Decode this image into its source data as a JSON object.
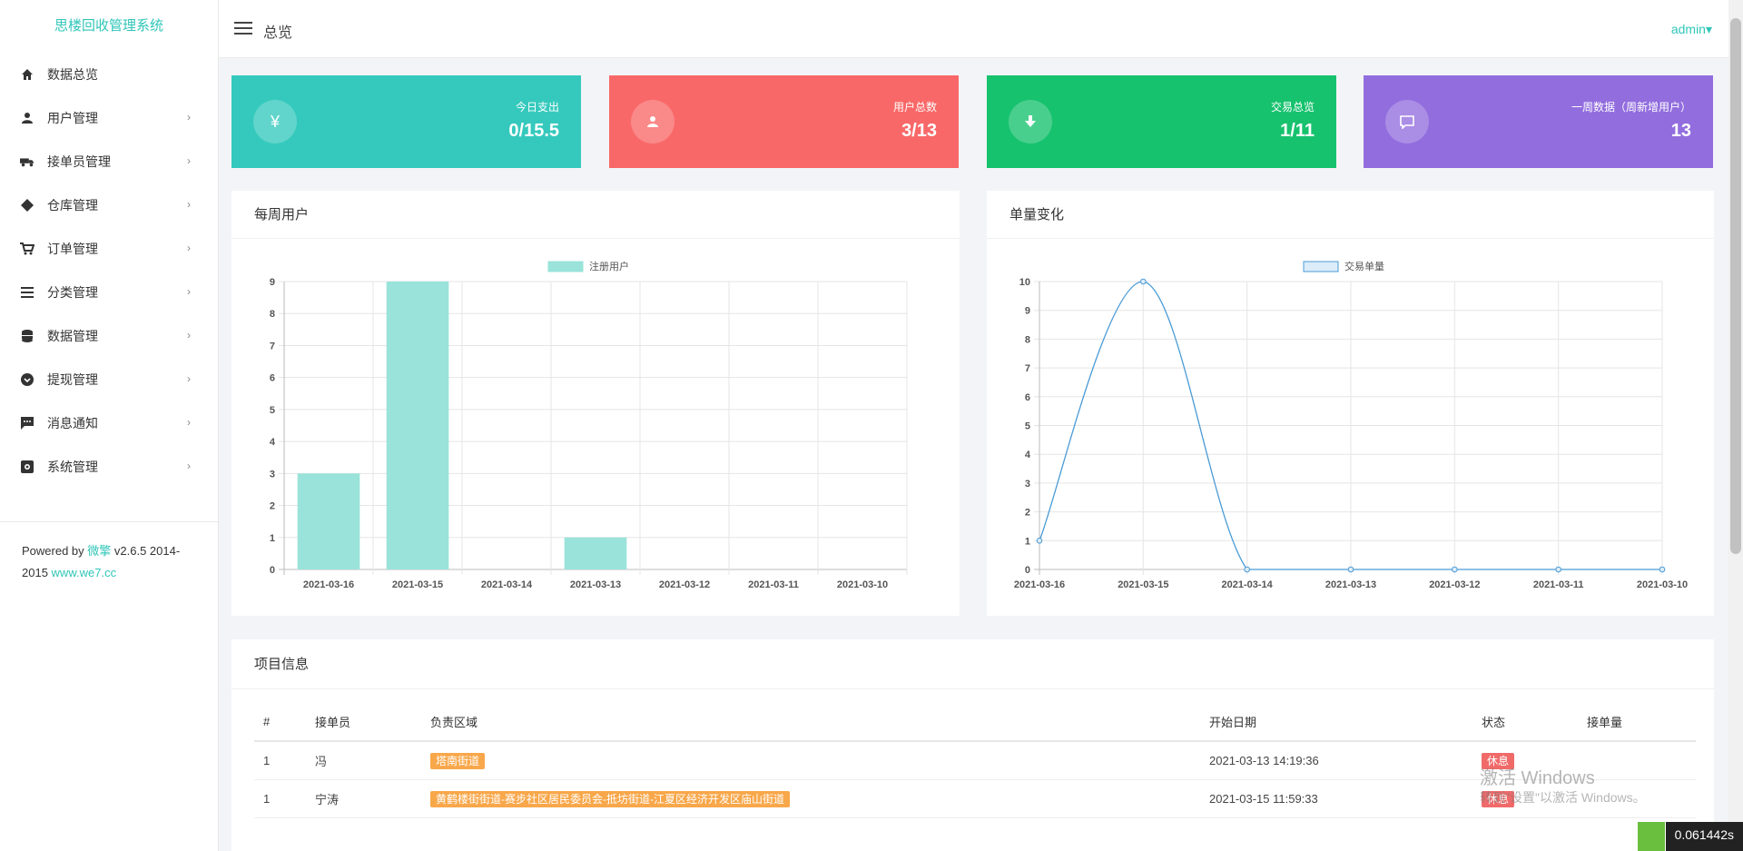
{
  "brand": "思楼回收管理系统",
  "sidebar": {
    "items": [
      {
        "label": "数据总览",
        "icon": "home-icon",
        "chev": ""
      },
      {
        "label": "用户管理",
        "icon": "user-icon",
        "chev": "›"
      },
      {
        "label": "接单员管理",
        "icon": "truck-icon",
        "chev": "›"
      },
      {
        "label": "仓库管理",
        "icon": "diamond-icon",
        "chev": "›"
      },
      {
        "label": "订单管理",
        "icon": "cart-icon",
        "chev": "›"
      },
      {
        "label": "分类管理",
        "icon": "list-icon",
        "chev": "›"
      },
      {
        "label": "数据管理",
        "icon": "database-icon",
        "chev": "›"
      },
      {
        "label": "提现管理",
        "icon": "chevron-circle-icon",
        "chev": "›"
      },
      {
        "label": "消息通知",
        "icon": "message-icon",
        "chev": "›"
      },
      {
        "label": "系统管理",
        "icon": "gear-icon",
        "chev": "›"
      }
    ],
    "powered_prefix": "Powered by ",
    "powered_brand": "微擎",
    "powered_version": " v2.6.5 2014-2015 ",
    "powered_link": "www.we7.cc"
  },
  "header": {
    "title": "总览",
    "user": "admin▾"
  },
  "cards": [
    {
      "label": "今日支出",
      "value": "0/15.5",
      "icon": "yen-icon",
      "glyph": "¥",
      "color": "#35c9bd"
    },
    {
      "label": "用户总数",
      "value": "3/13",
      "icon": "user-icon",
      "glyph": "",
      "color": "#f96868"
    },
    {
      "label": "交易总览",
      "value": "1/11",
      "icon": "download-icon",
      "glyph": "",
      "color": "#17c26e"
    },
    {
      "label": "一周数据（周新增用户）",
      "value": "13",
      "icon": "chat-icon",
      "glyph": "",
      "color": "#926dde"
    }
  ],
  "panels": {
    "weekly_users": "每周用户",
    "volume_change": "单量变化",
    "project_info": "项目信息"
  },
  "chart_data": [
    {
      "type": "bar",
      "categories": [
        "2021-03-16",
        "2021-03-15",
        "2021-03-14",
        "2021-03-13",
        "2021-03-12",
        "2021-03-11",
        "2021-03-10"
      ],
      "series": [
        {
          "name": "注册用户",
          "values": [
            3,
            9,
            0,
            1,
            0,
            0,
            0
          ],
          "color": "#99e3da"
        }
      ],
      "ylim": [
        0,
        9
      ],
      "grid": true,
      "legend": "top-center"
    },
    {
      "type": "line",
      "categories": [
        "2021-03-16",
        "2021-03-15",
        "2021-03-14",
        "2021-03-13",
        "2021-03-12",
        "2021-03-11",
        "2021-03-10"
      ],
      "series": [
        {
          "name": "交易单量",
          "values": [
            1,
            10,
            0,
            0,
            0,
            0,
            0
          ],
          "color": "#4a9bd6"
        }
      ],
      "ylim": [
        0,
        10
      ],
      "grid": true,
      "legend": "top-center"
    }
  ],
  "table": {
    "headers": [
      "#",
      "接单员",
      "负责区域",
      "开始日期",
      "状态",
      "接单量"
    ],
    "rows": [
      {
        "idx": "1",
        "name": "冯",
        "area": "塔南街道",
        "date": "2021-03-13 14:19:36",
        "status": "休息"
      },
      {
        "idx": "1",
        "name": "宁涛",
        "area": "黄鹤楼街街道-赛步社区居民委员会-抵坊街道-江夏区经济开发区庙山街道",
        "date": "2021-03-15 11:59:33",
        "status": "休息"
      }
    ]
  },
  "overlay": {
    "timer": "0.061442s",
    "win_title": "激活 Windows",
    "win_sub": "转到\"设置\"以激活 Windows。"
  }
}
